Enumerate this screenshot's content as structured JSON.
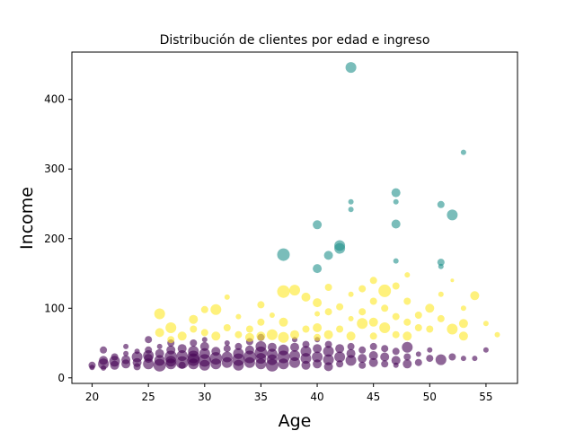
{
  "chart_data": {
    "type": "scatter",
    "title": "Distribución de clientes por edad e ingreso",
    "xlabel": "Age",
    "ylabel": "Income",
    "xlim": [
      18.2,
      57.8
    ],
    "ylim": [
      -8,
      468
    ],
    "x_ticks": [
      "20",
      "25",
      "30",
      "35",
      "40",
      "45",
      "50",
      "55"
    ],
    "y_ticks": [
      "0",
      "100",
      "200",
      "300",
      "400"
    ],
    "grid": false,
    "legend": false,
    "colors": {
      "low": "#440154",
      "mid": "#21918c",
      "high": "#fde725"
    },
    "point_format": "[x, y, size, group]",
    "points": [
      [
        20,
        15,
        3,
        0
      ],
      [
        20,
        18,
        4,
        0
      ],
      [
        21,
        20,
        6,
        0
      ],
      [
        21,
        25,
        5,
        0
      ],
      [
        21,
        40,
        4,
        0
      ],
      [
        21,
        14,
        3,
        0
      ],
      [
        22,
        18,
        5,
        0
      ],
      [
        22,
        24,
        6,
        0
      ],
      [
        22,
        30,
        4,
        0
      ],
      [
        23,
        20,
        5,
        0
      ],
      [
        23,
        35,
        3,
        0
      ],
      [
        23,
        45,
        3,
        0
      ],
      [
        23,
        26,
        5,
        0
      ],
      [
        24,
        22,
        5,
        0
      ],
      [
        24,
        30,
        6,
        0
      ],
      [
        24,
        38,
        3,
        0
      ],
      [
        24,
        16,
        4,
        0
      ],
      [
        25,
        20,
        6,
        0
      ],
      [
        25,
        28,
        5,
        0
      ],
      [
        25,
        40,
        4,
        0
      ],
      [
        25,
        55,
        4,
        0
      ],
      [
        25,
        32,
        6,
        0
      ],
      [
        26,
        18,
        7,
        0
      ],
      [
        26,
        25,
        6,
        0
      ],
      [
        26,
        35,
        5,
        0
      ],
      [
        26,
        45,
        3,
        0
      ],
      [
        27,
        20,
        6,
        0
      ],
      [
        27,
        30,
        7,
        0
      ],
      [
        27,
        40,
        5,
        0
      ],
      [
        27,
        50,
        4,
        0
      ],
      [
        27,
        24,
        6,
        0
      ],
      [
        28,
        22,
        7,
        0
      ],
      [
        28,
        32,
        6,
        0
      ],
      [
        28,
        42,
        5,
        0
      ],
      [
        28,
        18,
        4,
        0
      ],
      [
        29,
        20,
        6,
        0
      ],
      [
        29,
        30,
        7,
        0
      ],
      [
        29,
        38,
        6,
        0
      ],
      [
        29,
        50,
        4,
        0
      ],
      [
        29,
        26,
        7,
        0
      ],
      [
        30,
        18,
        6,
        0
      ],
      [
        30,
        25,
        7,
        0
      ],
      [
        30,
        35,
        6,
        0
      ],
      [
        30,
        45,
        5,
        0
      ],
      [
        30,
        55,
        3,
        0
      ],
      [
        31,
        20,
        6,
        0
      ],
      [
        31,
        28,
        7,
        0
      ],
      [
        31,
        38,
        5,
        0
      ],
      [
        32,
        22,
        6,
        0
      ],
      [
        32,
        30,
        6,
        0
      ],
      [
        32,
        42,
        4,
        0
      ],
      [
        32,
        50,
        3,
        0
      ],
      [
        33,
        18,
        6,
        0
      ],
      [
        33,
        26,
        7,
        0
      ],
      [
        33,
        35,
        6,
        0
      ],
      [
        33,
        45,
        4,
        0
      ],
      [
        34,
        22,
        6,
        0
      ],
      [
        34,
        30,
        7,
        0
      ],
      [
        34,
        40,
        5,
        0
      ],
      [
        34,
        52,
        4,
        0
      ],
      [
        35,
        20,
        6,
        0
      ],
      [
        35,
        28,
        6,
        0
      ],
      [
        35,
        36,
        7,
        0
      ],
      [
        35,
        45,
        6,
        0
      ],
      [
        35,
        58,
        4,
        0
      ],
      [
        36,
        18,
        7,
        0
      ],
      [
        36,
        26,
        6,
        0
      ],
      [
        36,
        34,
        6,
        0
      ],
      [
        36,
        44,
        5,
        0
      ],
      [
        37,
        20,
        6,
        0
      ],
      [
        37,
        30,
        7,
        0
      ],
      [
        37,
        40,
        6,
        0
      ],
      [
        38,
        22,
        6,
        0
      ],
      [
        38,
        32,
        6,
        0
      ],
      [
        38,
        44,
        5,
        0
      ],
      [
        38,
        55,
        3,
        0
      ],
      [
        39,
        18,
        5,
        0
      ],
      [
        39,
        28,
        6,
        0
      ],
      [
        39,
        38,
        6,
        0
      ],
      [
        39,
        48,
        4,
        0
      ],
      [
        40,
        20,
        5,
        0
      ],
      [
        40,
        30,
        6,
        0
      ],
      [
        40,
        42,
        5,
        0
      ],
      [
        40,
        55,
        3,
        0
      ],
      [
        41,
        16,
        5,
        0
      ],
      [
        41,
        26,
        6,
        0
      ],
      [
        41,
        38,
        6,
        0
      ],
      [
        41,
        48,
        4,
        0
      ],
      [
        42,
        20,
        4,
        0
      ],
      [
        42,
        30,
        6,
        0
      ],
      [
        42,
        42,
        5,
        0
      ],
      [
        43,
        25,
        6,
        0
      ],
      [
        43,
        35,
        5,
        0
      ],
      [
        43,
        45,
        4,
        0
      ],
      [
        44,
        18,
        4,
        0
      ],
      [
        44,
        28,
        5,
        0
      ],
      [
        44,
        40,
        4,
        0
      ],
      [
        45,
        22,
        5,
        0
      ],
      [
        45,
        32,
        5,
        0
      ],
      [
        45,
        45,
        4,
        0
      ],
      [
        46,
        20,
        4,
        0
      ],
      [
        46,
        30,
        5,
        0
      ],
      [
        46,
        42,
        4,
        0
      ],
      [
        47,
        25,
        5,
        0
      ],
      [
        47,
        38,
        4,
        0
      ],
      [
        47,
        18,
        3,
        0
      ],
      [
        48,
        20,
        5,
        0
      ],
      [
        48,
        30,
        4,
        0
      ],
      [
        48,
        44,
        6,
        0
      ],
      [
        49,
        22,
        4,
        0
      ],
      [
        49,
        34,
        3,
        0
      ],
      [
        50,
        28,
        4,
        0
      ],
      [
        50,
        40,
        3,
        0
      ],
      [
        51,
        26,
        6,
        0
      ],
      [
        52,
        30,
        4,
        0
      ],
      [
        53,
        28,
        3,
        0
      ],
      [
        54,
        28,
        3,
        0
      ],
      [
        55,
        40,
        3,
        0
      ],
      [
        26,
        92,
        6,
        2
      ],
      [
        26,
        65,
        5,
        2
      ],
      [
        27,
        72,
        6,
        2
      ],
      [
        27,
        55,
        4,
        2
      ],
      [
        28,
        60,
        5,
        2
      ],
      [
        29,
        84,
        5,
        2
      ],
      [
        29,
        70,
        4,
        2
      ],
      [
        30,
        65,
        4,
        2
      ],
      [
        30,
        98,
        4,
        2
      ],
      [
        31,
        98,
        6,
        2
      ],
      [
        31,
        60,
        5,
        2
      ],
      [
        32,
        116,
        3,
        2
      ],
      [
        32,
        72,
        4,
        2
      ],
      [
        33,
        62,
        4,
        2
      ],
      [
        33,
        88,
        3,
        2
      ],
      [
        34,
        58,
        5,
        2
      ],
      [
        34,
        70,
        4,
        2
      ],
      [
        35,
        105,
        4,
        2
      ],
      [
        35,
        60,
        5,
        2
      ],
      [
        35,
        80,
        4,
        2
      ],
      [
        36,
        62,
        6,
        2
      ],
      [
        36,
        90,
        3,
        2
      ],
      [
        37,
        124,
        7,
        2
      ],
      [
        37,
        58,
        6,
        2
      ],
      [
        37,
        80,
        5,
        2
      ],
      [
        38,
        126,
        6,
        2
      ],
      [
        38,
        62,
        5,
        2
      ],
      [
        39,
        116,
        5,
        2
      ],
      [
        39,
        70,
        4,
        2
      ],
      [
        40,
        108,
        5,
        2
      ],
      [
        40,
        72,
        5,
        2
      ],
      [
        40,
        58,
        4,
        2
      ],
      [
        40,
        92,
        3,
        2
      ],
      [
        41,
        130,
        4,
        2
      ],
      [
        41,
        95,
        4,
        2
      ],
      [
        41,
        62,
        5,
        2
      ],
      [
        42,
        102,
        4,
        2
      ],
      [
        42,
        70,
        4,
        2
      ],
      [
        43,
        120,
        3,
        2
      ],
      [
        43,
        60,
        5,
        2
      ],
      [
        43,
        85,
        3,
        2
      ],
      [
        44,
        128,
        4,
        2
      ],
      [
        44,
        78,
        6,
        2
      ],
      [
        44,
        95,
        4,
        2
      ],
      [
        45,
        140,
        4,
        2
      ],
      [
        45,
        110,
        4,
        2
      ],
      [
        45,
        80,
        5,
        2
      ],
      [
        45,
        60,
        4,
        2
      ],
      [
        46,
        125,
        7,
        2
      ],
      [
        46,
        100,
        4,
        2
      ],
      [
        46,
        72,
        6,
        2
      ],
      [
        47,
        132,
        4,
        2
      ],
      [
        47,
        88,
        4,
        2
      ],
      [
        47,
        62,
        4,
        2
      ],
      [
        48,
        148,
        3,
        2
      ],
      [
        48,
        110,
        4,
        2
      ],
      [
        48,
        80,
        4,
        2
      ],
      [
        48,
        60,
        5,
        2
      ],
      [
        49,
        90,
        4,
        2
      ],
      [
        49,
        72,
        4,
        2
      ],
      [
        50,
        100,
        5,
        2
      ],
      [
        50,
        70,
        4,
        2
      ],
      [
        51,
        120,
        3,
        2
      ],
      [
        51,
        85,
        4,
        2
      ],
      [
        52,
        70,
        6,
        2
      ],
      [
        52,
        140,
        2,
        2
      ],
      [
        53,
        78,
        5,
        2
      ],
      [
        53,
        60,
        5,
        2
      ],
      [
        53,
        100,
        3,
        2
      ],
      [
        54,
        118,
        5,
        2
      ],
      [
        55,
        78,
        3,
        2
      ],
      [
        56,
        62,
        3,
        2
      ],
      [
        43,
        446,
        6,
        1
      ],
      [
        53,
        324,
        3,
        1
      ],
      [
        47,
        266,
        5,
        1
      ],
      [
        43,
        253,
        3,
        1
      ],
      [
        43,
        242,
        3,
        1
      ],
      [
        40,
        220,
        5,
        1
      ],
      [
        47,
        221,
        5,
        1
      ],
      [
        51,
        249,
        4,
        1
      ],
      [
        52,
        234,
        6,
        1
      ],
      [
        42,
        190,
        6,
        1
      ],
      [
        42,
        186,
        6,
        1
      ],
      [
        37,
        177,
        7,
        1
      ],
      [
        41,
        176,
        5,
        1
      ],
      [
        40,
        157,
        5,
        1
      ],
      [
        47,
        168,
        3,
        1
      ],
      [
        51,
        166,
        4,
        1
      ],
      [
        51,
        160,
        3,
        1
      ],
      [
        47,
        253,
        3,
        1
      ]
    ]
  }
}
